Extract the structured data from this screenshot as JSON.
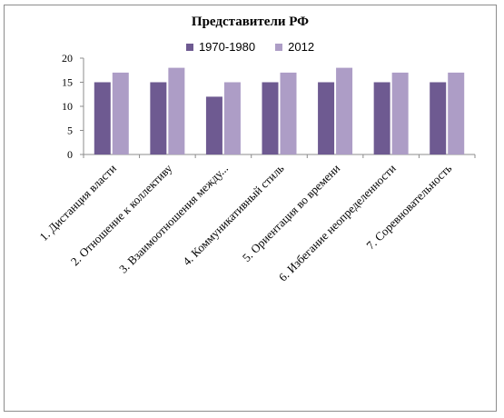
{
  "chart_data": {
    "type": "bar",
    "title": "Представители РФ",
    "xlabel": "",
    "ylabel": "",
    "ylim": [
      0,
      20
    ],
    "yticks": [
      0,
      5,
      10,
      15,
      20
    ],
    "grid": false,
    "legend_position": "top",
    "categories": [
      "1. Дистанция власти",
      "2. Отношение к коллективу",
      "3. Взаимоотношения между...",
      "4. Коммуникативный стиль",
      "5. Ориентация во времени",
      "6. Избегание неопределенности",
      "7. Соревновательность"
    ],
    "series": [
      {
        "name": "1970-1980",
        "color": "#6e5a91",
        "values": [
          15,
          15,
          12,
          15,
          15,
          15,
          15
        ]
      },
      {
        "name": "2012",
        "color": "#ad9dc6",
        "values": [
          17,
          18,
          15,
          17,
          18,
          17,
          17
        ]
      }
    ]
  }
}
